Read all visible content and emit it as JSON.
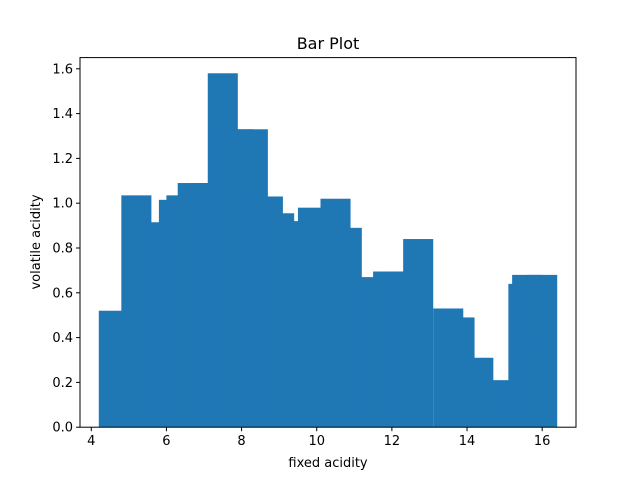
{
  "chart_data": {
    "type": "bar",
    "title": "Bar Plot",
    "xlabel": "fixed acidity",
    "ylabel": "volatile acidity",
    "xlim": [
      3.7,
      16.9
    ],
    "ylim": [
      0.0,
      1.65
    ],
    "xticks": [
      4,
      6,
      8,
      10,
      12,
      14,
      16
    ],
    "yticks": [
      0.0,
      0.2,
      0.4,
      0.6,
      0.8,
      1.0,
      1.2,
      1.4,
      1.6
    ],
    "xtick_labels": [
      "4",
      "6",
      "8",
      "10",
      "12",
      "14",
      "16"
    ],
    "ytick_labels": [
      "0.0",
      "0.2",
      "0.4",
      "0.6",
      "0.8",
      "1.0",
      "1.2",
      "1.4",
      "1.6"
    ],
    "bar_color": "#1f77b4",
    "bar_width": 0.8,
    "grid": false,
    "bars": [
      {
        "x": 4.6,
        "y": 0.52
      },
      {
        "x": 5.2,
        "y": 1.035
      },
      {
        "x": 5.8,
        "y": 0.915
      },
      {
        "x": 6.2,
        "y": 1.015
      },
      {
        "x": 6.4,
        "y": 1.035
      },
      {
        "x": 6.7,
        "y": 1.09
      },
      {
        "x": 7.1,
        "y": 1.09
      },
      {
        "x": 7.5,
        "y": 1.58
      },
      {
        "x": 7.9,
        "y": 1.33
      },
      {
        "x": 8.3,
        "y": 1.33
      },
      {
        "x": 8.7,
        "y": 1.03
      },
      {
        "x": 9.0,
        "y": 0.955
      },
      {
        "x": 9.3,
        "y": 0.92
      },
      {
        "x": 9.9,
        "y": 0.98
      },
      {
        "x": 10.5,
        "y": 1.02
      },
      {
        "x": 10.8,
        "y": 0.89
      },
      {
        "x": 11.5,
        "y": 0.67
      },
      {
        "x": 11.9,
        "y": 0.695
      },
      {
        "x": 12.3,
        "y": 0.695
      },
      {
        "x": 12.7,
        "y": 0.84
      },
      {
        "x": 13.5,
        "y": 0.53
      },
      {
        "x": 13.8,
        "y": 0.49
      },
      {
        "x": 14.3,
        "y": 0.31
      },
      {
        "x": 14.9,
        "y": 0.21
      },
      {
        "x": 15.5,
        "y": 0.64
      },
      {
        "x": 15.6,
        "y": 0.68
      },
      {
        "x": 16.0,
        "y": 0.68
      },
      {
        "x": 15.9,
        "y": 0.36
      }
    ]
  }
}
